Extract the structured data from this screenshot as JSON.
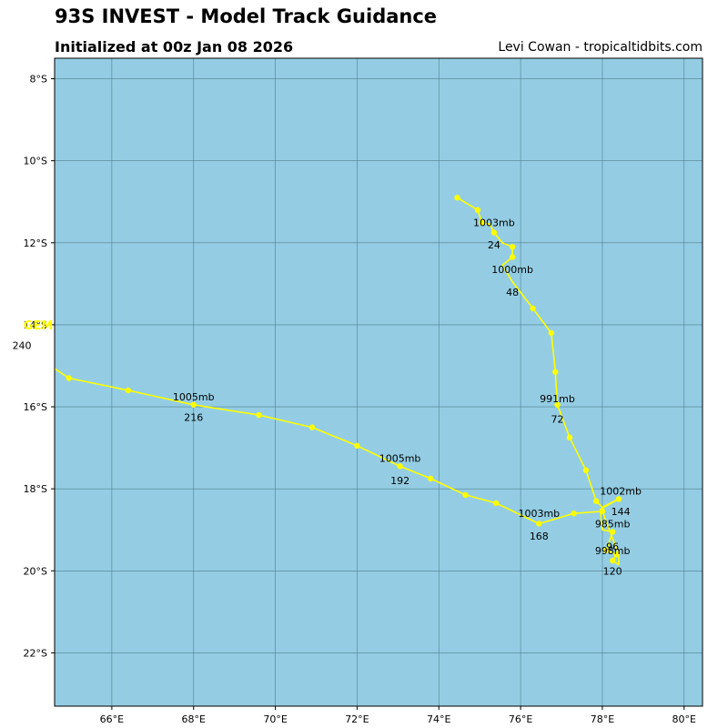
{
  "header": {
    "title": "93S INVEST - Model Track Guidance",
    "subtitle": "Initialized at 00z Jan 08 2026",
    "credit": "Levi Cowan - tropicaltidbits.com"
  },
  "colors": {
    "ocean": "#94cde3",
    "grid": "#4f7f8e",
    "track": "#ffff00",
    "model_label": "#ffff00"
  },
  "chart_data": {
    "type": "map-track",
    "lon_range": [
      64.6,
      80.45
    ],
    "lat_range": [
      -23.3,
      -7.5
    ],
    "lon_ticks": [
      66,
      68,
      70,
      72,
      74,
      76,
      78,
      80
    ],
    "lon_tick_labels": [
      "66°E",
      "68°E",
      "70°E",
      "72°E",
      "74°E",
      "76°E",
      "78°E",
      "80°E"
    ],
    "lat_ticks": [
      -8,
      -10,
      -12,
      -14,
      -16,
      -18,
      -20,
      -22
    ],
    "lat_tick_labels": [
      "8°S",
      "10°S",
      "12°S",
      "14°S",
      "16°S",
      "18°S",
      "20°S",
      "22°S"
    ],
    "grid": true,
    "model": {
      "name": "GEM",
      "name_lon": 64.2,
      "name_lat": -14.0,
      "end_hour_label": "240",
      "end_hour_lon": 63.8,
      "end_hour_lat": -14.5
    },
    "track": [
      [
        74.45,
        -10.9
      ],
      [
        74.95,
        -11.2
      ],
      [
        75.05,
        -11.5
      ],
      [
        75.25,
        -11.55
      ],
      [
        75.35,
        -11.75
      ],
      [
        75.55,
        -12.0
      ],
      [
        75.8,
        -12.1
      ],
      [
        75.8,
        -12.35
      ],
      [
        75.55,
        -12.55
      ],
      [
        75.8,
        -12.95
      ],
      [
        76.3,
        -13.6
      ],
      [
        76.75,
        -14.2
      ],
      [
        76.85,
        -15.15
      ],
      [
        76.9,
        -15.95
      ],
      [
        77.2,
        -16.75
      ],
      [
        77.6,
        -17.55
      ],
      [
        77.85,
        -18.3
      ],
      [
        78.0,
        -18.45
      ],
      [
        78.4,
        -18.25
      ],
      [
        77.95,
        -18.5
      ],
      [
        78.0,
        -19.0
      ],
      [
        78.25,
        -19.05
      ],
      [
        78.1,
        -19.5
      ],
      [
        78.35,
        -19.6
      ],
      [
        78.25,
        -19.75
      ],
      [
        78.4,
        -19.85
      ],
      [
        78.4,
        -19.6
      ],
      [
        78.0,
        -18.55
      ],
      [
        77.3,
        -18.6
      ],
      [
        76.45,
        -18.85
      ],
      [
        75.4,
        -18.35
      ],
      [
        74.65,
        -18.15
      ],
      [
        73.8,
        -17.75
      ],
      [
        73.05,
        -17.45
      ],
      [
        72.0,
        -16.95
      ],
      [
        70.9,
        -16.5
      ],
      [
        69.6,
        -16.2
      ],
      [
        68.0,
        -15.95
      ],
      [
        66.4,
        -15.6
      ],
      [
        64.95,
        -15.3
      ],
      [
        64.5,
        -15.0
      ]
    ],
    "points": [
      [
        74.45,
        -10.9
      ],
      [
        74.95,
        -11.2
      ],
      [
        75.05,
        -11.5
      ],
      [
        75.35,
        -11.75
      ],
      [
        75.8,
        -12.1
      ],
      [
        75.8,
        -12.35
      ],
      [
        76.3,
        -13.6
      ],
      [
        76.75,
        -14.2
      ],
      [
        76.85,
        -15.15
      ],
      [
        76.9,
        -15.95
      ],
      [
        77.2,
        -16.75
      ],
      [
        77.6,
        -17.55
      ],
      [
        77.85,
        -18.3
      ],
      [
        78.4,
        -18.25
      ],
      [
        78.25,
        -19.05
      ],
      [
        78.1,
        -19.5
      ],
      [
        78.35,
        -19.6
      ],
      [
        78.25,
        -19.75
      ],
      [
        78.0,
        -18.55
      ],
      [
        77.3,
        -18.6
      ],
      [
        76.45,
        -18.85
      ],
      [
        75.4,
        -18.35
      ],
      [
        74.65,
        -18.15
      ],
      [
        73.8,
        -17.75
      ],
      [
        73.05,
        -17.45
      ],
      [
        72.0,
        -16.95
      ],
      [
        70.9,
        -16.5
      ],
      [
        69.6,
        -16.2
      ],
      [
        68.0,
        -15.95
      ],
      [
        66.4,
        -15.6
      ],
      [
        64.95,
        -15.3
      ]
    ],
    "annotations": [
      {
        "text": "1003mb",
        "lon": 75.35,
        "lat": -11.5
      },
      {
        "text": "24",
        "lon": 75.35,
        "lat": -12.05
      },
      {
        "text": "1000mb",
        "lon": 75.8,
        "lat": -12.65
      },
      {
        "text": "48",
        "lon": 75.8,
        "lat": -13.2
      },
      {
        "text": "991mb",
        "lon": 76.9,
        "lat": -15.8
      },
      {
        "text": "72",
        "lon": 76.9,
        "lat": -16.3
      },
      {
        "text": "1002mb",
        "lon": 78.45,
        "lat": -18.05
      },
      {
        "text": "144",
        "lon": 78.45,
        "lat": -18.55
      },
      {
        "text": "985mb",
        "lon": 78.25,
        "lat": -18.85
      },
      {
        "text": "96",
        "lon": 78.25,
        "lat": -19.4
      },
      {
        "text": "998mb",
        "lon": 78.25,
        "lat": -19.5
      },
      {
        "text": "120",
        "lon": 78.25,
        "lat": -20.0
      },
      {
        "text": "1003mb",
        "lon": 76.45,
        "lat": -18.6
      },
      {
        "text": "168",
        "lon": 76.45,
        "lat": -19.15
      },
      {
        "text": "1005mb",
        "lon": 73.05,
        "lat": -17.25
      },
      {
        "text": "192",
        "lon": 73.05,
        "lat": -17.8
      },
      {
        "text": "1005mb",
        "lon": 68.0,
        "lat": -15.75
      },
      {
        "text": "216",
        "lon": 68.0,
        "lat": -16.25
      }
    ]
  }
}
